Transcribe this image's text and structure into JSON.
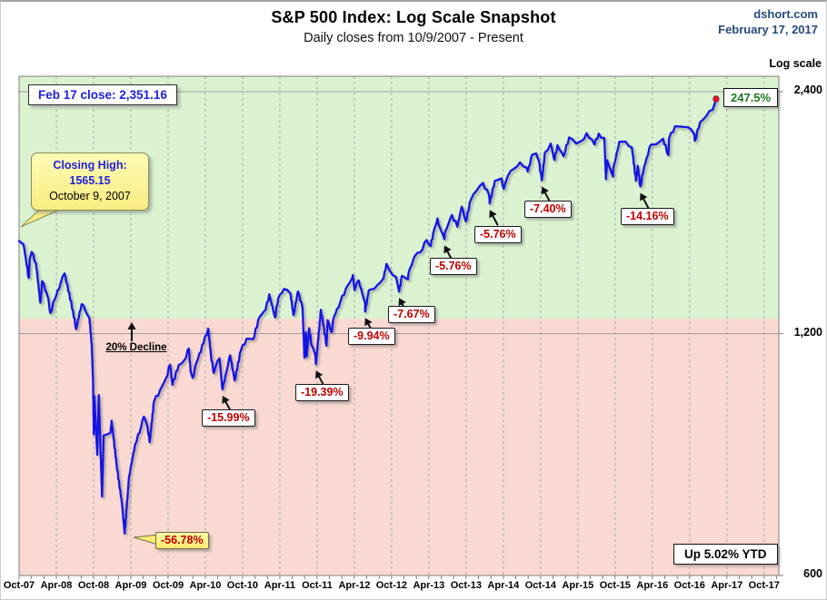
{
  "header": {
    "title": "S&P 500 Index: Log Scale Snapshot",
    "subtitle": "Daily closes from 10/9/2007 - Present",
    "source": "dshort.com",
    "as_of": "February 17, 2017"
  },
  "annotations": {
    "feb17_close": "Feb 17 close: 2,351.16",
    "closing_high": {
      "title": "Closing High:",
      "value": "1565.15",
      "date": "October 9, 2007"
    },
    "decline_label": "20% Decline",
    "total_gain": "247.5%",
    "ytd": "Up 5.02% YTD"
  },
  "chart_data": {
    "type": "line",
    "title": "S&P 500 Index: Log Scale Snapshot",
    "subtitle": "Daily closes from 10/9/2007 - Present",
    "y_axis": {
      "label": "Log scale",
      "scale": "log",
      "ticks": [
        {
          "label": "2,400",
          "value": 2400
        },
        {
          "label": "1,200",
          "value": 1200
        },
        {
          "label": "600",
          "value": 600
        }
      ],
      "range": [
        600,
        2520
      ]
    },
    "x_axis": {
      "start": "2007-10-09",
      "end": "2017-02-17",
      "tick_labels": [
        "Oct-07",
        "Apr-08",
        "Oct-08",
        "Apr-09",
        "Oct-09",
        "Apr-10",
        "Oct-10",
        "Apr-11",
        "Oct-11",
        "Apr-12",
        "Oct-12",
        "Apr-13",
        "Oct-13",
        "Apr-14",
        "Oct-14",
        "Apr-15",
        "Oct-15",
        "Apr-16",
        "Oct-16",
        "Apr-17",
        "Oct-17"
      ]
    },
    "zones": {
      "upper": {
        "color": "#DAF2D0",
        "meaning": "within 20% of closing high"
      },
      "lower": {
        "color": "#F9D9D1",
        "meaning": "more than 20% below closing high"
      },
      "boundary_value": 1252.12
    },
    "close_marker": {
      "date": "2017-02-17",
      "value": 2351.16,
      "color": "#E01535"
    },
    "drawdowns": [
      {
        "label": "-56.78%",
        "trough_date": "2009-03-09",
        "trough_value": 676.53,
        "style": "yellow-callout"
      },
      {
        "label": "-15.99%",
        "trough_date": "2010-07-02",
        "trough_value": 1022.58,
        "style": "box"
      },
      {
        "label": "-19.39%",
        "trough_date": "2011-10-03",
        "trough_value": 1099.23,
        "style": "box"
      },
      {
        "label": "-9.94%",
        "trough_date": "2012-06-01",
        "trough_value": 1278.04,
        "style": "box"
      },
      {
        "label": "-7.67%",
        "trough_date": "2012-11-15",
        "trough_value": 1353.33,
        "style": "box"
      },
      {
        "label": "-5.76%",
        "trough_date": "2013-06-24",
        "trough_value": 1573.09,
        "style": "box"
      },
      {
        "label": "-5.76%",
        "trough_date": "2014-02-03",
        "trough_value": 1741.89,
        "style": "box"
      },
      {
        "label": "-7.40%",
        "trough_date": "2014-10-15",
        "trough_value": 1862.49,
        "style": "box"
      },
      {
        "label": "-14.16%",
        "trough_date": "2016-02-11",
        "trough_value": 1829.08,
        "style": "box"
      }
    ],
    "series": [
      {
        "name": "S&P 500 daily close",
        "color": "#1414E6",
        "points": [
          [
            "2007-10-09",
            1565.15
          ],
          [
            "2007-10-31",
            1549
          ],
          [
            "2007-11-26",
            1407
          ],
          [
            "2007-11-30",
            1481
          ],
          [
            "2007-12-10",
            1516
          ],
          [
            "2007-12-31",
            1468
          ],
          [
            "2008-01-22",
            1311
          ],
          [
            "2008-02-01",
            1395
          ],
          [
            "2008-02-29",
            1331
          ],
          [
            "2008-03-10",
            1273
          ],
          [
            "2008-03-31",
            1323
          ],
          [
            "2008-04-30",
            1386
          ],
          [
            "2008-05-19",
            1426
          ],
          [
            "2008-06-30",
            1280
          ],
          [
            "2008-07-15",
            1215
          ],
          [
            "2008-08-11",
            1306
          ],
          [
            "2008-08-29",
            1283
          ],
          [
            "2008-09-19",
            1255
          ],
          [
            "2008-09-30",
            1166
          ],
          [
            "2008-10-06",
            1057
          ],
          [
            "2008-10-10",
            899
          ],
          [
            "2008-10-13",
            1003
          ],
          [
            "2008-10-27",
            848
          ],
          [
            "2008-11-04",
            1006
          ],
          [
            "2008-11-20",
            752
          ],
          [
            "2008-11-28",
            896
          ],
          [
            "2008-12-31",
            903
          ],
          [
            "2009-01-06",
            935
          ],
          [
            "2009-01-30",
            826
          ],
          [
            "2009-02-27",
            735
          ],
          [
            "2009-03-09",
            676.53
          ],
          [
            "2009-03-31",
            798
          ],
          [
            "2009-04-30",
            873
          ],
          [
            "2009-05-29",
            919
          ],
          [
            "2009-06-12",
            946
          ],
          [
            "2009-06-30",
            919
          ],
          [
            "2009-07-10",
            879
          ],
          [
            "2009-07-31",
            987
          ],
          [
            "2009-08-31",
            1021
          ],
          [
            "2009-09-30",
            1057
          ],
          [
            "2009-10-19",
            1098
          ],
          [
            "2009-10-30",
            1036
          ],
          [
            "2009-11-30",
            1096
          ],
          [
            "2009-12-31",
            1115
          ],
          [
            "2010-01-19",
            1150
          ],
          [
            "2010-01-29",
            1074
          ],
          [
            "2010-02-08",
            1057
          ],
          [
            "2010-02-26",
            1104
          ],
          [
            "2010-03-31",
            1169
          ],
          [
            "2010-04-23",
            1217.28
          ],
          [
            "2010-05-06",
            1128
          ],
          [
            "2010-05-20",
            1072
          ],
          [
            "2010-05-28",
            1089
          ],
          [
            "2010-06-18",
            1118
          ],
          [
            "2010-06-30",
            1031
          ],
          [
            "2010-07-02",
            1022.58
          ],
          [
            "2010-07-30",
            1102
          ],
          [
            "2010-08-09",
            1128
          ],
          [
            "2010-08-31",
            1049
          ],
          [
            "2010-09-30",
            1141
          ],
          [
            "2010-10-29",
            1183
          ],
          [
            "2010-11-30",
            1181
          ],
          [
            "2010-12-31",
            1258
          ],
          [
            "2011-01-31",
            1286
          ],
          [
            "2011-02-18",
            1343
          ],
          [
            "2011-03-16",
            1257
          ],
          [
            "2011-03-31",
            1326
          ],
          [
            "2011-04-29",
            1363.61
          ],
          [
            "2011-05-31",
            1345
          ],
          [
            "2011-06-15",
            1265
          ],
          [
            "2011-06-30",
            1321
          ],
          [
            "2011-07-07",
            1354
          ],
          [
            "2011-07-29",
            1292
          ],
          [
            "2011-08-08",
            1119.46
          ],
          [
            "2011-08-15",
            1205
          ],
          [
            "2011-08-19",
            1124
          ],
          [
            "2011-08-31",
            1219
          ],
          [
            "2011-09-12",
            1162
          ],
          [
            "2011-09-30",
            1131
          ],
          [
            "2011-10-03",
            1099.23
          ],
          [
            "2011-10-28",
            1285
          ],
          [
            "2011-11-25",
            1159
          ],
          [
            "2011-11-30",
            1247
          ],
          [
            "2011-12-19",
            1205
          ],
          [
            "2011-12-30",
            1258
          ],
          [
            "2012-01-31",
            1312
          ],
          [
            "2012-02-29",
            1366
          ],
          [
            "2012-03-30",
            1408
          ],
          [
            "2012-04-02",
            1419.04
          ],
          [
            "2012-04-10",
            1359
          ],
          [
            "2012-04-30",
            1398
          ],
          [
            "2012-05-31",
            1310
          ],
          [
            "2012-06-01",
            1278.04
          ],
          [
            "2012-06-19",
            1358
          ],
          [
            "2012-06-29",
            1362
          ],
          [
            "2012-07-31",
            1379
          ],
          [
            "2012-08-31",
            1407
          ],
          [
            "2012-09-14",
            1465.77
          ],
          [
            "2012-09-28",
            1441
          ],
          [
            "2012-10-31",
            1412
          ],
          [
            "2012-11-15",
            1353.33
          ],
          [
            "2012-11-30",
            1416
          ],
          [
            "2012-12-28",
            1402
          ],
          [
            "2012-12-31",
            1426
          ],
          [
            "2013-01-31",
            1498
          ],
          [
            "2013-02-28",
            1515
          ],
          [
            "2013-03-28",
            1569
          ],
          [
            "2013-04-18",
            1542
          ],
          [
            "2013-04-30",
            1598
          ],
          [
            "2013-05-21",
            1669.16
          ],
          [
            "2013-05-31",
            1631
          ],
          [
            "2013-06-24",
            1573.09
          ],
          [
            "2013-06-28",
            1606
          ],
          [
            "2013-07-31",
            1686
          ],
          [
            "2013-08-27",
            1630
          ],
          [
            "2013-09-18",
            1726
          ],
          [
            "2013-09-30",
            1682
          ],
          [
            "2013-10-08",
            1655
          ],
          [
            "2013-10-31",
            1757
          ],
          [
            "2013-11-29",
            1806
          ],
          [
            "2013-12-31",
            1848
          ],
          [
            "2014-01-31",
            1783
          ],
          [
            "2014-02-03",
            1741.89
          ],
          [
            "2014-02-28",
            1859
          ],
          [
            "2014-03-31",
            1872
          ],
          [
            "2014-04-11",
            1816
          ],
          [
            "2014-04-30",
            1884
          ],
          [
            "2014-05-30",
            1924
          ],
          [
            "2014-06-30",
            1960
          ],
          [
            "2014-07-31",
            1931
          ],
          [
            "2014-08-07",
            1909
          ],
          [
            "2014-08-29",
            2003
          ],
          [
            "2014-09-18",
            2011.36
          ],
          [
            "2014-09-30",
            1972
          ],
          [
            "2014-10-15",
            1862.49
          ],
          [
            "2014-10-31",
            2018
          ],
          [
            "2014-11-28",
            2068
          ],
          [
            "2014-12-16",
            1973
          ],
          [
            "2014-12-31",
            2059
          ],
          [
            "2015-01-30",
            1995
          ],
          [
            "2015-02-27",
            2105
          ],
          [
            "2015-03-31",
            2068
          ],
          [
            "2015-04-30",
            2086
          ],
          [
            "2015-05-21",
            2130.82
          ],
          [
            "2015-06-30",
            2063
          ],
          [
            "2015-07-20",
            2128
          ],
          [
            "2015-07-31",
            2104
          ],
          [
            "2015-08-17",
            2102
          ],
          [
            "2015-08-25",
            1867.61
          ],
          [
            "2015-08-31",
            1972
          ],
          [
            "2015-09-28",
            1882
          ],
          [
            "2015-09-30",
            1920
          ],
          [
            "2015-10-30",
            2079
          ],
          [
            "2015-11-30",
            2080
          ],
          [
            "2015-12-31",
            2044
          ],
          [
            "2016-01-20",
            1859
          ],
          [
            "2016-01-29",
            1940
          ],
          [
            "2016-02-11",
            1829.08
          ],
          [
            "2016-02-29",
            1932
          ],
          [
            "2016-03-31",
            2060
          ],
          [
            "2016-04-29",
            2065
          ],
          [
            "2016-05-31",
            2097
          ],
          [
            "2016-06-27",
            2001
          ],
          [
            "2016-06-30",
            2099
          ],
          [
            "2016-07-29",
            2174
          ],
          [
            "2016-08-31",
            2171
          ],
          [
            "2016-09-30",
            2168
          ],
          [
            "2016-10-31",
            2126
          ],
          [
            "2016-11-04",
            2085
          ],
          [
            "2016-11-30",
            2199
          ],
          [
            "2016-12-30",
            2239
          ],
          [
            "2017-01-31",
            2279
          ],
          [
            "2017-02-17",
            2351.16
          ]
        ]
      }
    ]
  }
}
